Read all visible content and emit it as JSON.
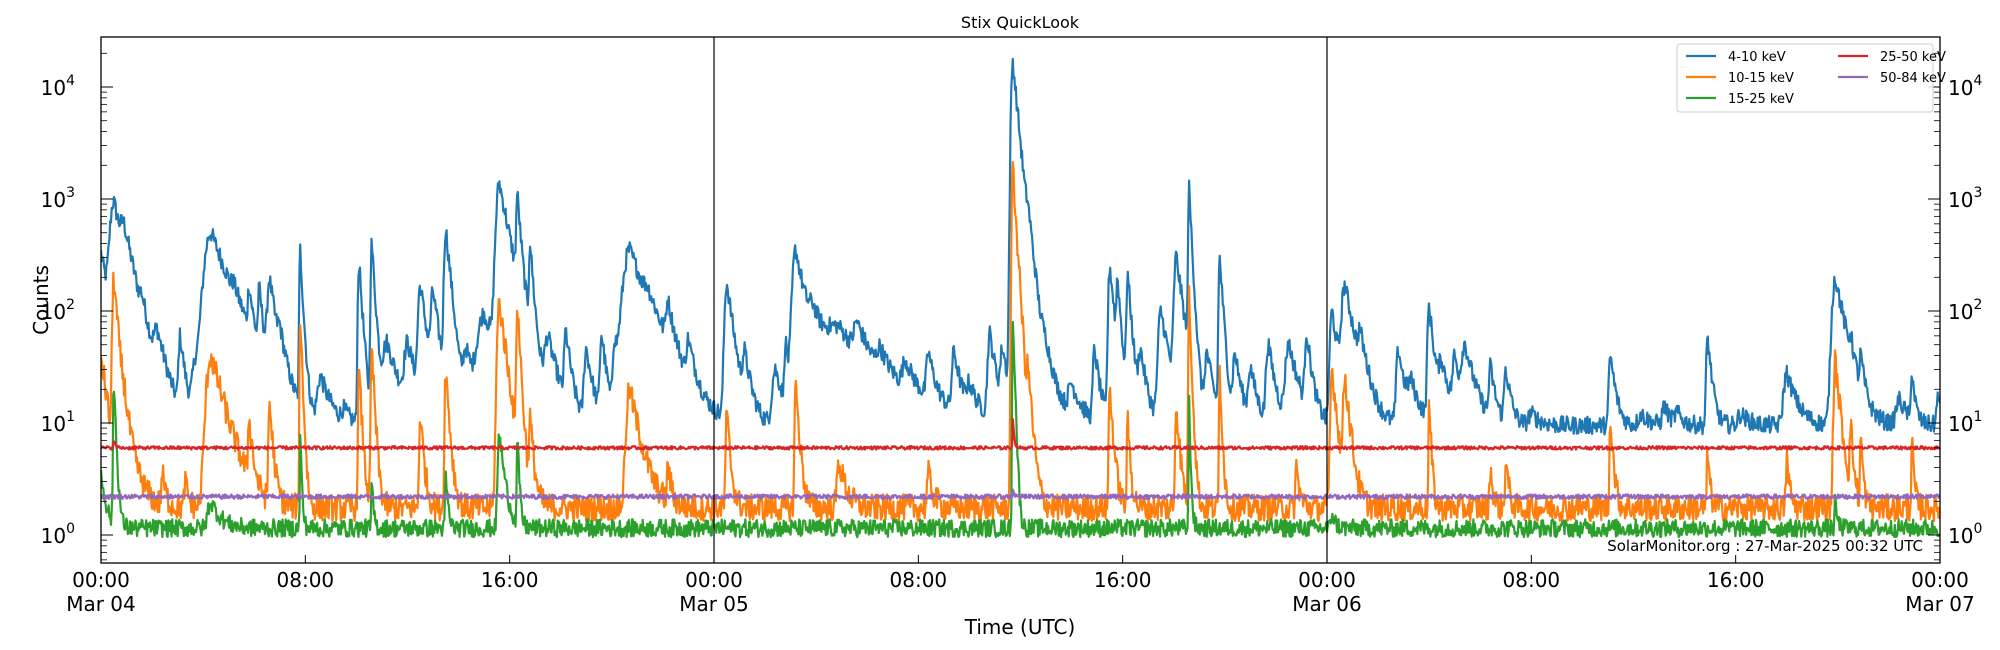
{
  "chart_data": {
    "type": "line",
    "title": "Stix QuickLook",
    "xlabel": "Time (UTC)",
    "ylabel": "Counts",
    "yscale": "log",
    "ylim": [
      0.55,
      28000
    ],
    "xlim_hours": [
      0,
      72
    ],
    "x_ticks": [
      {
        "hour": 0,
        "label": "00:00",
        "sublabel": "Mar 04"
      },
      {
        "hour": 8,
        "label": "08:00",
        "sublabel": ""
      },
      {
        "hour": 16,
        "label": "16:00",
        "sublabel": ""
      },
      {
        "hour": 24,
        "label": "00:00",
        "sublabel": "Mar 05"
      },
      {
        "hour": 32,
        "label": "08:00",
        "sublabel": ""
      },
      {
        "hour": 40,
        "label": "16:00",
        "sublabel": ""
      },
      {
        "hour": 48,
        "label": "00:00",
        "sublabel": "Mar 06"
      },
      {
        "hour": 56,
        "label": "08:00",
        "sublabel": ""
      },
      {
        "hour": 64,
        "label": "16:00",
        "sublabel": ""
      },
      {
        "hour": 72,
        "label": "00:00",
        "sublabel": "Mar 07"
      }
    ],
    "y_ticks": [
      {
        "value": 1,
        "base": "10",
        "exp": "0"
      },
      {
        "value": 10,
        "base": "10",
        "exp": "1"
      },
      {
        "value": 100,
        "base": "10",
        "exp": "2"
      },
      {
        "value": 1000,
        "base": "10",
        "exp": "3"
      },
      {
        "value": 10000,
        "base": "10",
        "exp": "4"
      }
    ],
    "day_dividers_hours": [
      24,
      48
    ],
    "grid": false,
    "legend_position": "upper right",
    "legend_columns": 2,
    "annotation": "SolarMonitor.org : 27-Mar-2025 00:32 UTC",
    "series": [
      {
        "name": "4-10 keV",
        "color": "#1f77b4",
        "baseline": 9.5,
        "noise": 0.08,
        "peaks": [
          [
            0.0,
            330,
            0.25
          ],
          [
            0.5,
            900,
            0.35
          ],
          [
            0.9,
            250,
            0.3
          ],
          [
            1.6,
            45,
            0.2
          ],
          [
            2.2,
            45,
            0.3
          ],
          [
            3.1,
            55,
            0.15
          ],
          [
            3.7,
            30,
            0.3
          ],
          [
            4.3,
            500,
            0.6
          ],
          [
            5.2,
            40,
            0.2
          ],
          [
            5.8,
            110,
            0.12
          ],
          [
            6.2,
            120,
            0.12
          ],
          [
            6.6,
            170,
            0.2
          ],
          [
            7.0,
            35,
            0.2
          ],
          [
            7.8,
            350,
            0.08
          ],
          [
            8.6,
            25,
            0.3
          ],
          [
            9.5,
            12,
            0.2
          ],
          [
            10.1,
            280,
            0.1
          ],
          [
            10.6,
            400,
            0.1
          ],
          [
            11.2,
            50,
            0.4
          ],
          [
            12.0,
            45,
            0.3
          ],
          [
            12.5,
            160,
            0.2
          ],
          [
            13.0,
            130,
            0.2
          ],
          [
            13.5,
            530,
            0.15
          ],
          [
            14.3,
            40,
            0.3
          ],
          [
            15.0,
            90,
            0.6
          ],
          [
            15.6,
            1350,
            0.3
          ],
          [
            16.3,
            950,
            0.1
          ],
          [
            16.8,
            350,
            0.1
          ],
          [
            17.5,
            50,
            0.3
          ],
          [
            18.2,
            60,
            0.15
          ],
          [
            19.0,
            45,
            0.2
          ],
          [
            19.6,
            60,
            0.15
          ],
          [
            20.1,
            50,
            0.15
          ],
          [
            20.7,
            350,
            0.6
          ],
          [
            21.4,
            40,
            0.3
          ],
          [
            22.2,
            80,
            0.2
          ],
          [
            23.0,
            40,
            0.2
          ],
          [
            24.5,
            180,
            0.2
          ],
          [
            25.2,
            35,
            0.2
          ],
          [
            26.4,
            30,
            0.3
          ],
          [
            26.8,
            50,
            0.1
          ],
          [
            27.2,
            350,
            0.3
          ],
          [
            27.9,
            60,
            0.5
          ],
          [
            28.9,
            60,
            1.4
          ],
          [
            29.6,
            45,
            0.3
          ],
          [
            30.5,
            25,
            0.3
          ],
          [
            31.5,
            25,
            0.3
          ],
          [
            32.4,
            35,
            0.2
          ],
          [
            33.4,
            40,
            0.2
          ],
          [
            34.0,
            18,
            0.3
          ],
          [
            34.8,
            60,
            0.2
          ],
          [
            35.3,
            40,
            0.2
          ],
          [
            35.7,
            17000,
            0.15
          ],
          [
            36.3,
            300,
            0.2
          ],
          [
            37.0,
            30,
            0.4
          ],
          [
            38.0,
            20,
            0.3
          ],
          [
            38.9,
            45,
            0.15
          ],
          [
            39.5,
            250,
            0.15
          ],
          [
            39.8,
            160,
            0.1
          ],
          [
            40.2,
            200,
            0.12
          ],
          [
            40.7,
            40,
            0.2
          ],
          [
            41.5,
            100,
            0.25
          ],
          [
            42.1,
            300,
            0.2
          ],
          [
            42.6,
            1200,
            0.08
          ],
          [
            43.3,
            40,
            0.2
          ],
          [
            43.8,
            300,
            0.1
          ],
          [
            44.4,
            40,
            0.2
          ],
          [
            45.0,
            30,
            0.2
          ],
          [
            45.7,
            50,
            0.2
          ],
          [
            46.5,
            50,
            0.3
          ],
          [
            47.2,
            60,
            0.15
          ],
          [
            48.2,
            100,
            0.2
          ],
          [
            48.7,
            160,
            0.3
          ],
          [
            49.3,
            40,
            0.2
          ],
          [
            50.8,
            45,
            0.2
          ],
          [
            51.3,
            20,
            0.3
          ],
          [
            52.0,
            110,
            0.15
          ],
          [
            52.5,
            30,
            0.3
          ],
          [
            53.0,
            35,
            0.2
          ],
          [
            53.4,
            45,
            0.3
          ],
          [
            54.4,
            30,
            0.15
          ],
          [
            55.0,
            30,
            0.15
          ],
          [
            56.0,
            12,
            0.3
          ],
          [
            59.1,
            40,
            0.15
          ],
          [
            60.3,
            12,
            0.3
          ],
          [
            61.2,
            14,
            0.2
          ],
          [
            61.7,
            12,
            0.2
          ],
          [
            62.9,
            60,
            0.12
          ],
          [
            64.2,
            12,
            0.3
          ],
          [
            66.0,
            28,
            0.3
          ],
          [
            67.9,
            200,
            0.3
          ],
          [
            68.5,
            30,
            0.1
          ],
          [
            68.9,
            30,
            0.1
          ],
          [
            70.4,
            16,
            0.3
          ],
          [
            70.9,
            30,
            0.08
          ],
          [
            71.9,
            18,
            0.1
          ]
        ]
      },
      {
        "name": "10-15 keV",
        "color": "#ff7f0e",
        "baseline": 1.75,
        "noise": 0.12,
        "peaks": [
          [
            0.0,
            40,
            0.2
          ],
          [
            0.5,
            200,
            0.12
          ],
          [
            0.9,
            10,
            0.3
          ],
          [
            2.4,
            3.5,
            0.1
          ],
          [
            3.3,
            3.0,
            0.1
          ],
          [
            4.3,
            40,
            0.4
          ],
          [
            5.8,
            10,
            0.1
          ],
          [
            6.6,
            15,
            0.1
          ],
          [
            7.8,
            90,
            0.06
          ],
          [
            10.1,
            30,
            0.08
          ],
          [
            10.6,
            45,
            0.08
          ],
          [
            12.5,
            12,
            0.1
          ],
          [
            13.5,
            30,
            0.1
          ],
          [
            15.6,
            120,
            0.2
          ],
          [
            16.3,
            120,
            0.08
          ],
          [
            16.8,
            10,
            0.1
          ],
          [
            20.7,
            20,
            0.3
          ],
          [
            22.2,
            4.0,
            0.1
          ],
          [
            24.5,
            12,
            0.1
          ],
          [
            27.2,
            22,
            0.1
          ],
          [
            28.9,
            4.5,
            0.2
          ],
          [
            32.4,
            3.5,
            0.15
          ],
          [
            35.7,
            1800,
            0.1
          ],
          [
            36.3,
            20,
            0.12
          ],
          [
            39.5,
            20,
            0.1
          ],
          [
            40.2,
            10,
            0.08
          ],
          [
            42.1,
            15,
            0.1
          ],
          [
            42.6,
            140,
            0.06
          ],
          [
            43.8,
            30,
            0.06
          ],
          [
            46.8,
            4,
            0.1
          ],
          [
            48.2,
            30,
            0.15
          ],
          [
            48.7,
            25,
            0.15
          ],
          [
            52.0,
            15,
            0.06
          ],
          [
            54.4,
            4.0,
            0.08
          ],
          [
            55.0,
            5.0,
            0.08
          ],
          [
            59.1,
            12,
            0.08
          ],
          [
            62.9,
            6,
            0.06
          ],
          [
            66.0,
            5,
            0.08
          ],
          [
            67.9,
            35,
            0.15
          ],
          [
            68.5,
            9,
            0.08
          ],
          [
            68.9,
            8,
            0.06
          ],
          [
            70.9,
            7,
            0.06
          ]
        ]
      },
      {
        "name": "15-25 keV",
        "color": "#2ca02c",
        "baseline": 1.15,
        "noise": 0.08,
        "peaks": [
          [
            0.0,
            3.5,
            0.15
          ],
          [
            0.5,
            25,
            0.06
          ],
          [
            4.3,
            2.0,
            0.3
          ],
          [
            7.8,
            8,
            0.04
          ],
          [
            10.6,
            3.0,
            0.05
          ],
          [
            13.5,
            3.5,
            0.06
          ],
          [
            15.6,
            8,
            0.15
          ],
          [
            16.3,
            8,
            0.05
          ],
          [
            35.7,
            95,
            0.05
          ],
          [
            42.6,
            15,
            0.04
          ],
          [
            48.2,
            1.6,
            0.1
          ],
          [
            67.9,
            2.0,
            0.06
          ]
        ]
      },
      {
        "name": "25-50 keV",
        "color": "#d62728",
        "baseline": 6.0,
        "noise": 0.015,
        "peaks": [
          [
            0.5,
            7.0,
            0.05
          ],
          [
            35.7,
            11,
            0.04
          ]
        ]
      },
      {
        "name": "50-84 keV",
        "color": "#9467bd",
        "baseline": 2.2,
        "noise": 0.02,
        "peaks": [
          [
            35.7,
            2.6,
            0.04
          ]
        ]
      }
    ]
  }
}
